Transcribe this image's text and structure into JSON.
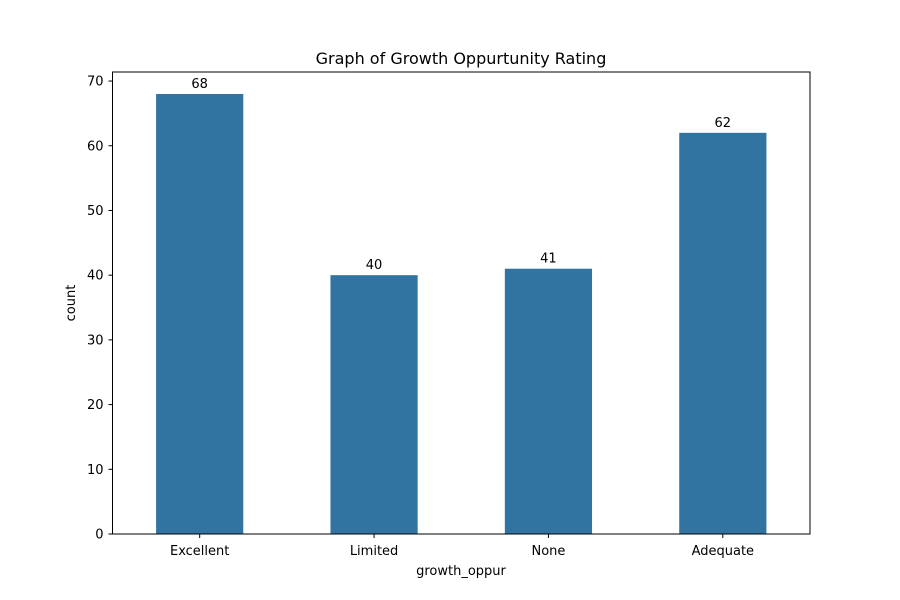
{
  "chart_data": {
    "type": "bar",
    "title": "Graph of Growth Oppurtunity Rating",
    "xlabel": "growth_oppur",
    "ylabel": "count",
    "categories": [
      "Excellent",
      "Limited",
      "None",
      "Adequate"
    ],
    "values": [
      68,
      40,
      41,
      62
    ],
    "ylim": [
      0,
      71.4
    ],
    "yticks": [
      0,
      10,
      20,
      30,
      40,
      50,
      60,
      70
    ],
    "bar_color": "#3274a1",
    "grid": false,
    "legend": "none"
  }
}
